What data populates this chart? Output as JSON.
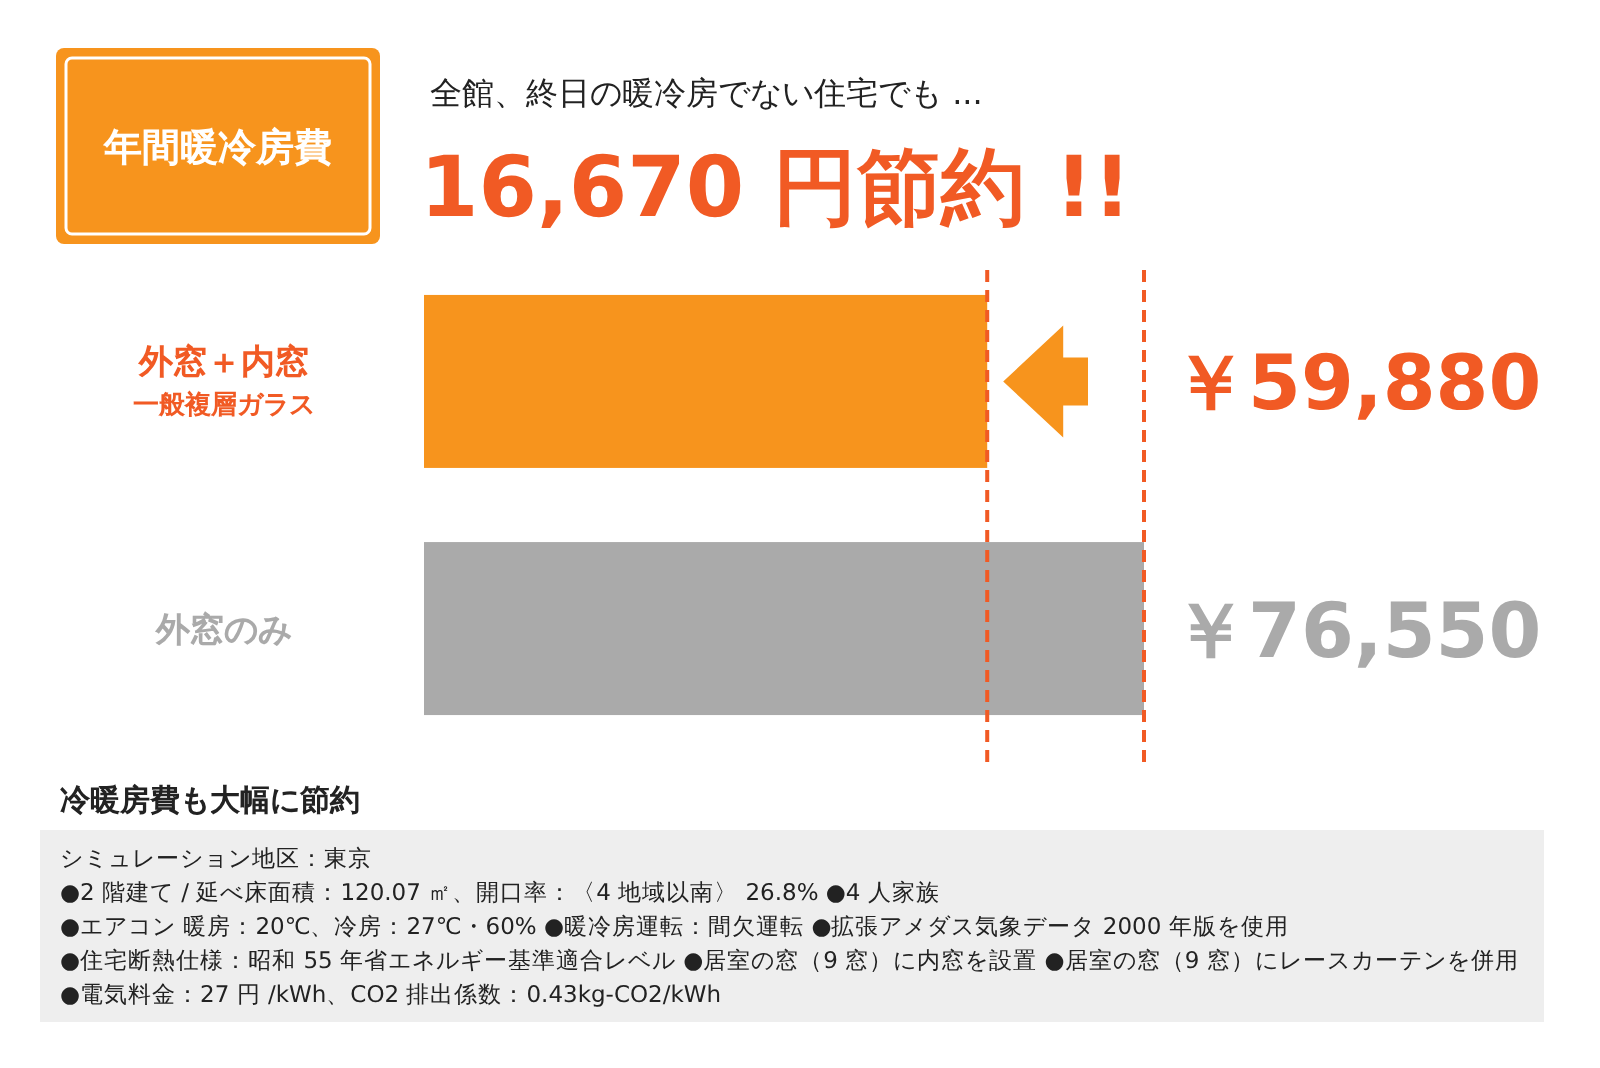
{
  "chart_data": {
    "type": "bar",
    "orientation": "horizontal",
    "title": "年間暖冷房費",
    "subtitle": "全館、終日の暖冷房でない住宅でも ...",
    "categories": [
      "外窓＋内窓",
      "外窓のみ"
    ],
    "values": [
      59880,
      76550
    ],
    "colors": [
      "#f7941d",
      "#aaaaaa"
    ],
    "value_labels": [
      "￥59,880",
      "￥76,550"
    ],
    "ref_lines": [
      {
        "axis": "x",
        "value": 59880,
        "color": "#f15a24",
        "line_style": "dashed"
      },
      {
        "axis": "x",
        "value": 76550,
        "color": "#f15a24",
        "line_style": "dashed"
      }
    ],
    "annotations": [
      "16,670 円節約 !!",
      "冷暖房費も大幅に節約",
      "一般複層ガラス",
      "シミュレーション地区：東京",
      "●2 階建て / 延べ床面積：120.07 ㎡、開口率：〈4 地域以南〉 26.8% ●4 人家族",
      "●エアコン 暖房：20℃、冷房：27℃・60% ●暖冷房運転：間欠運転 ●拡張アメダス気象データ 2000 年版を使用",
      "●住宅断熱仕様：昭和 55 年省エネルギー基準適合レベル ●居室の窓（9 窓）に内窓を設置 ●居室の窓（9 窓）にレースカーテンを併用",
      "●電気料金：27 円 /kWh、CO2 排出係数：0.43kg-CO2/kWh"
    ]
  }
}
